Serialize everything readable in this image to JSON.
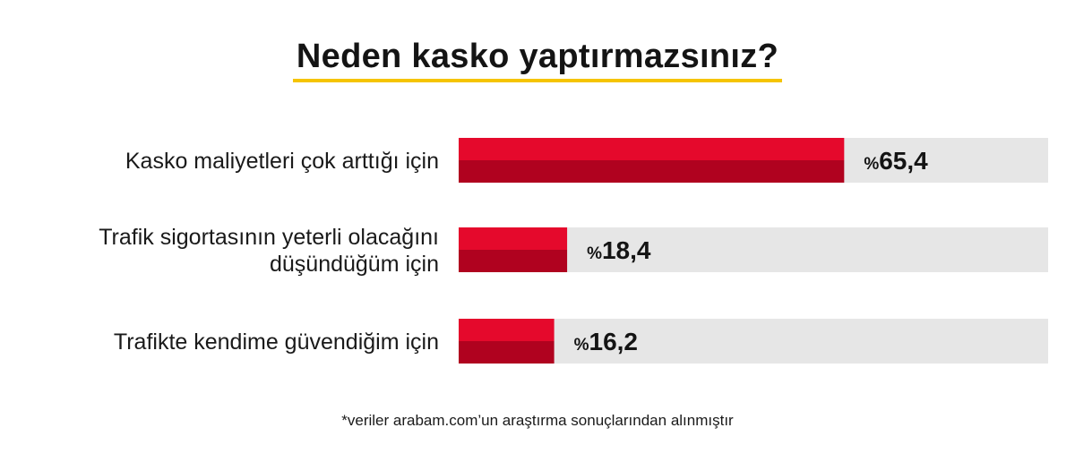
{
  "title": "Neden kasko yaptırmazsınız?",
  "footnote": "*veriler arabam.com’un araştırma sonuçlarından alınmıştır",
  "colors": {
    "bar_top": "#e5092c",
    "bar_bottom": "#b0021f",
    "track": "#e6e6e6",
    "title_underline": "#f5c400"
  },
  "chart_data": {
    "type": "bar",
    "orientation": "horizontal",
    "categories": [
      [
        "Kasko maliyetleri çok arttığı için"
      ],
      [
        "Trafik sigortasının yeterli olacağını",
        "düşündüğüm için"
      ],
      [
        "Trafikte kendime güvendiğim için"
      ]
    ],
    "values": [
      65.4,
      18.4,
      16.2
    ],
    "value_labels": [
      "65,4",
      "18,4",
      "16,2"
    ],
    "value_prefix": "%",
    "xlim": [
      0,
      100
    ],
    "grid": false,
    "legend": "none"
  }
}
